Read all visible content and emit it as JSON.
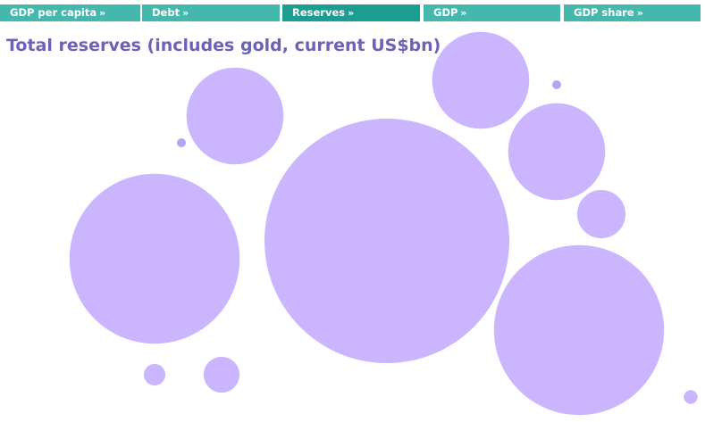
{
  "nav": {
    "tabs": [
      {
        "label": "GDP per capita",
        "chevron": "»",
        "active": false
      },
      {
        "label": "Debt",
        "chevron": "»",
        "active": false
      },
      {
        "label": "Reserves",
        "chevron": "»",
        "active": true
      },
      {
        "label": "GDP",
        "chevron": "»",
        "active": false
      },
      {
        "label": "GDP share",
        "chevron": "»",
        "active": false
      }
    ]
  },
  "colors": {
    "tab": "#45b8ae",
    "tab_active": "#1c9d92",
    "title": "#6c63b8",
    "bubble": "#cbb5ff",
    "dot": "#b9a4f4"
  },
  "chart_data": {
    "type": "bubble",
    "title": "Total reserves (includes gold, current US$bn)",
    "legend": "none",
    "grid": false,
    "values": [
      3820,
      1845,
      1845,
      600,
      600,
      600,
      150,
      82,
      30,
      12,
      5,
      5
    ]
  }
}
